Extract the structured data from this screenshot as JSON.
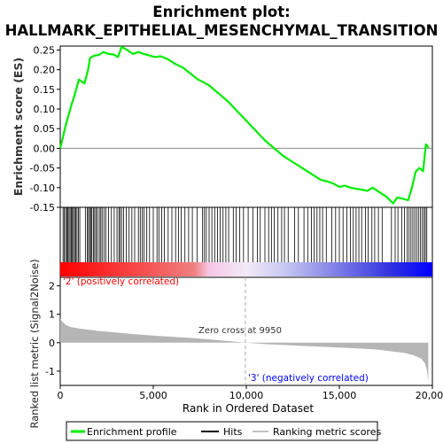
{
  "chart_data": {
    "type": "line",
    "title_line1": "Enrichment plot:",
    "title_line2": "HALLMARK_EPITHELIAL_MESENCHYMAL_TRANSITION",
    "xlabel": "Rank in Ordered Dataset",
    "xlim": [
      0,
      20000
    ],
    "x_ticks": [
      0,
      5000,
      10000,
      15000,
      20000
    ],
    "x_tick_labels": [
      "0",
      "5,000",
      "10,000",
      "15,000",
      "20,000"
    ],
    "es_panel": {
      "ylabel": "Enrichment score (ES)",
      "ylim": [
        -0.15,
        0.26
      ],
      "y_ticks": [
        -0.15,
        -0.1,
        -0.05,
        0.0,
        0.05,
        0.1,
        0.15,
        0.2,
        0.25
      ],
      "y_tick_labels": [
        "-0.15",
        "-0.10",
        "-0.05",
        "0.00",
        "0.05",
        "0.10",
        "0.15",
        "0.20",
        "0.25"
      ],
      "series": [
        {
          "name": "Enrichment profile",
          "color": "#00ff00",
          "points": [
            [
              0,
              0.0
            ],
            [
              150,
              0.03
            ],
            [
              300,
              0.06
            ],
            [
              450,
              0.085
            ],
            [
              600,
              0.11
            ],
            [
              800,
              0.14
            ],
            [
              1000,
              0.175
            ],
            [
              1300,
              0.165
            ],
            [
              1500,
              0.2
            ],
            [
              1600,
              0.23
            ],
            [
              1800,
              0.235
            ],
            [
              2100,
              0.238
            ],
            [
              2300,
              0.245
            ],
            [
              2600,
              0.24
            ],
            [
              2900,
              0.238
            ],
            [
              3100,
              0.232
            ],
            [
              3300,
              0.258
            ],
            [
              3600,
              0.25
            ],
            [
              3900,
              0.24
            ],
            [
              4200,
              0.245
            ],
            [
              4500,
              0.24
            ],
            [
              4800,
              0.236
            ],
            [
              5100,
              0.232
            ],
            [
              5400,
              0.234
            ],
            [
              5800,
              0.226
            ],
            [
              6200,
              0.214
            ],
            [
              6600,
              0.205
            ],
            [
              7000,
              0.19
            ],
            [
              7400,
              0.175
            ],
            [
              7700,
              0.168
            ],
            [
              8000,
              0.16
            ],
            [
              8500,
              0.14
            ],
            [
              9000,
              0.12
            ],
            [
              9500,
              0.095
            ],
            [
              10000,
              0.07
            ],
            [
              10500,
              0.045
            ],
            [
              11000,
              0.02
            ],
            [
              11500,
              0.0
            ],
            [
              12000,
              -0.02
            ],
            [
              12500,
              -0.035
            ],
            [
              13000,
              -0.05
            ],
            [
              13500,
              -0.065
            ],
            [
              14000,
              -0.08
            ],
            [
              14400,
              -0.085
            ],
            [
              14700,
              -0.09
            ],
            [
              15000,
              -0.098
            ],
            [
              15300,
              -0.095
            ],
            [
              15600,
              -0.1
            ],
            [
              15900,
              -0.103
            ],
            [
              16200,
              -0.105
            ],
            [
              16500,
              -0.108
            ],
            [
              16800,
              -0.1
            ],
            [
              17100,
              -0.11
            ],
            [
              17500,
              -0.122
            ],
            [
              17900,
              -0.14
            ],
            [
              18100,
              -0.125
            ],
            [
              18400,
              -0.128
            ],
            [
              18700,
              -0.132
            ],
            [
              18900,
              -0.1
            ],
            [
              19100,
              -0.06
            ],
            [
              19300,
              -0.05
            ],
            [
              19500,
              -0.058
            ],
            [
              19650,
              0.01
            ],
            [
              19800,
              0.002
            ]
          ]
        }
      ]
    },
    "hits_panel": {
      "label": "Hits",
      "hit_ranks": [
        150,
        220,
        290,
        350,
        410,
        470,
        530,
        590,
        650,
        710,
        770,
        830,
        900,
        980,
        1050,
        1350,
        1450,
        1520,
        1580,
        1650,
        1700,
        1780,
        1850,
        1920,
        2000,
        2100,
        2180,
        2250,
        2350,
        2450,
        2600,
        2750,
        2900,
        3050,
        3150,
        3220,
        3300,
        3400,
        3550,
        3700,
        3850,
        4000,
        4200,
        4300,
        4400,
        4500,
        4650,
        4800,
        5000,
        5200,
        5300,
        5450,
        5600,
        5800,
        6000,
        6200,
        6350,
        6500,
        6700,
        6900,
        7100,
        7350,
        7650,
        7750,
        7850,
        8000,
        8150,
        8300,
        8450,
        8600,
        8750,
        8900,
        9050,
        9300,
        9450,
        9650,
        9850,
        10100,
        10350,
        10600,
        10750,
        11000,
        11200,
        11350,
        11500,
        11700,
        11900,
        12050,
        12250,
        12600,
        12800,
        13100,
        13300,
        13500,
        13650,
        13800,
        13950,
        14100,
        14300,
        14600,
        14800,
        15000,
        15200,
        15400,
        15600,
        15750,
        15900,
        16050,
        16200,
        16400,
        16550,
        16750,
        16900,
        17100,
        17300,
        17800,
        18000,
        18150,
        18350,
        18500,
        18650,
        18750,
        18850,
        18950,
        19050,
        19150,
        19250,
        19350,
        19450,
        19550,
        19620,
        19700
      ]
    },
    "metric_panel": {
      "ylabel": "Ranked list metric (Signal2Noise)",
      "ylim": [
        -1.5,
        2.3
      ],
      "y_ticks": [
        -1,
        0,
        1,
        2
      ],
      "y_tick_labels": [
        "-1",
        "0",
        "1",
        "2"
      ],
      "series": [
        {
          "name": "Ranking metric scores",
          "color": "#b0b0b0",
          "points": [
            [
              0,
              0.85
            ],
            [
              100,
              0.75
            ],
            [
              300,
              0.62
            ],
            [
              600,
              0.55
            ],
            [
              1000,
              0.5
            ],
            [
              2000,
              0.42
            ],
            [
              3000,
              0.36
            ],
            [
              4000,
              0.3
            ],
            [
              5000,
              0.25
            ],
            [
              6000,
              0.21
            ],
            [
              7000,
              0.17
            ],
            [
              8000,
              0.12
            ],
            [
              9000,
              0.06
            ],
            [
              9950,
              0.0
            ],
            [
              11000,
              -0.05
            ],
            [
              12000,
              -0.08
            ],
            [
              13000,
              -0.11
            ],
            [
              14000,
              -0.14
            ],
            [
              15000,
              -0.17
            ],
            [
              16000,
              -0.2
            ],
            [
              17000,
              -0.24
            ],
            [
              17800,
              -0.3
            ],
            [
              18500,
              -0.36
            ],
            [
              19000,
              -0.44
            ],
            [
              19400,
              -0.56
            ],
            [
              19600,
              -0.72
            ],
            [
              19700,
              -0.95
            ],
            [
              19780,
              -1.38
            ]
          ]
        }
      ],
      "zero_cross_rank": 9950,
      "zero_cross_label": "Zero cross at 9950",
      "positive_label": "'2' (positively correlated)",
      "negative_label": "'3' (negatively correlated)",
      "positive_color": "#ff0000",
      "negative_color": "#0000ff"
    },
    "legend": {
      "placement": "bottom",
      "entries": [
        {
          "name": "Enrichment profile",
          "color": "#00ff00"
        },
        {
          "name": "Hits",
          "color": "#000000"
        },
        {
          "name": "Ranking metric scores",
          "color": "#c0c0c0"
        }
      ]
    },
    "grid": false
  }
}
